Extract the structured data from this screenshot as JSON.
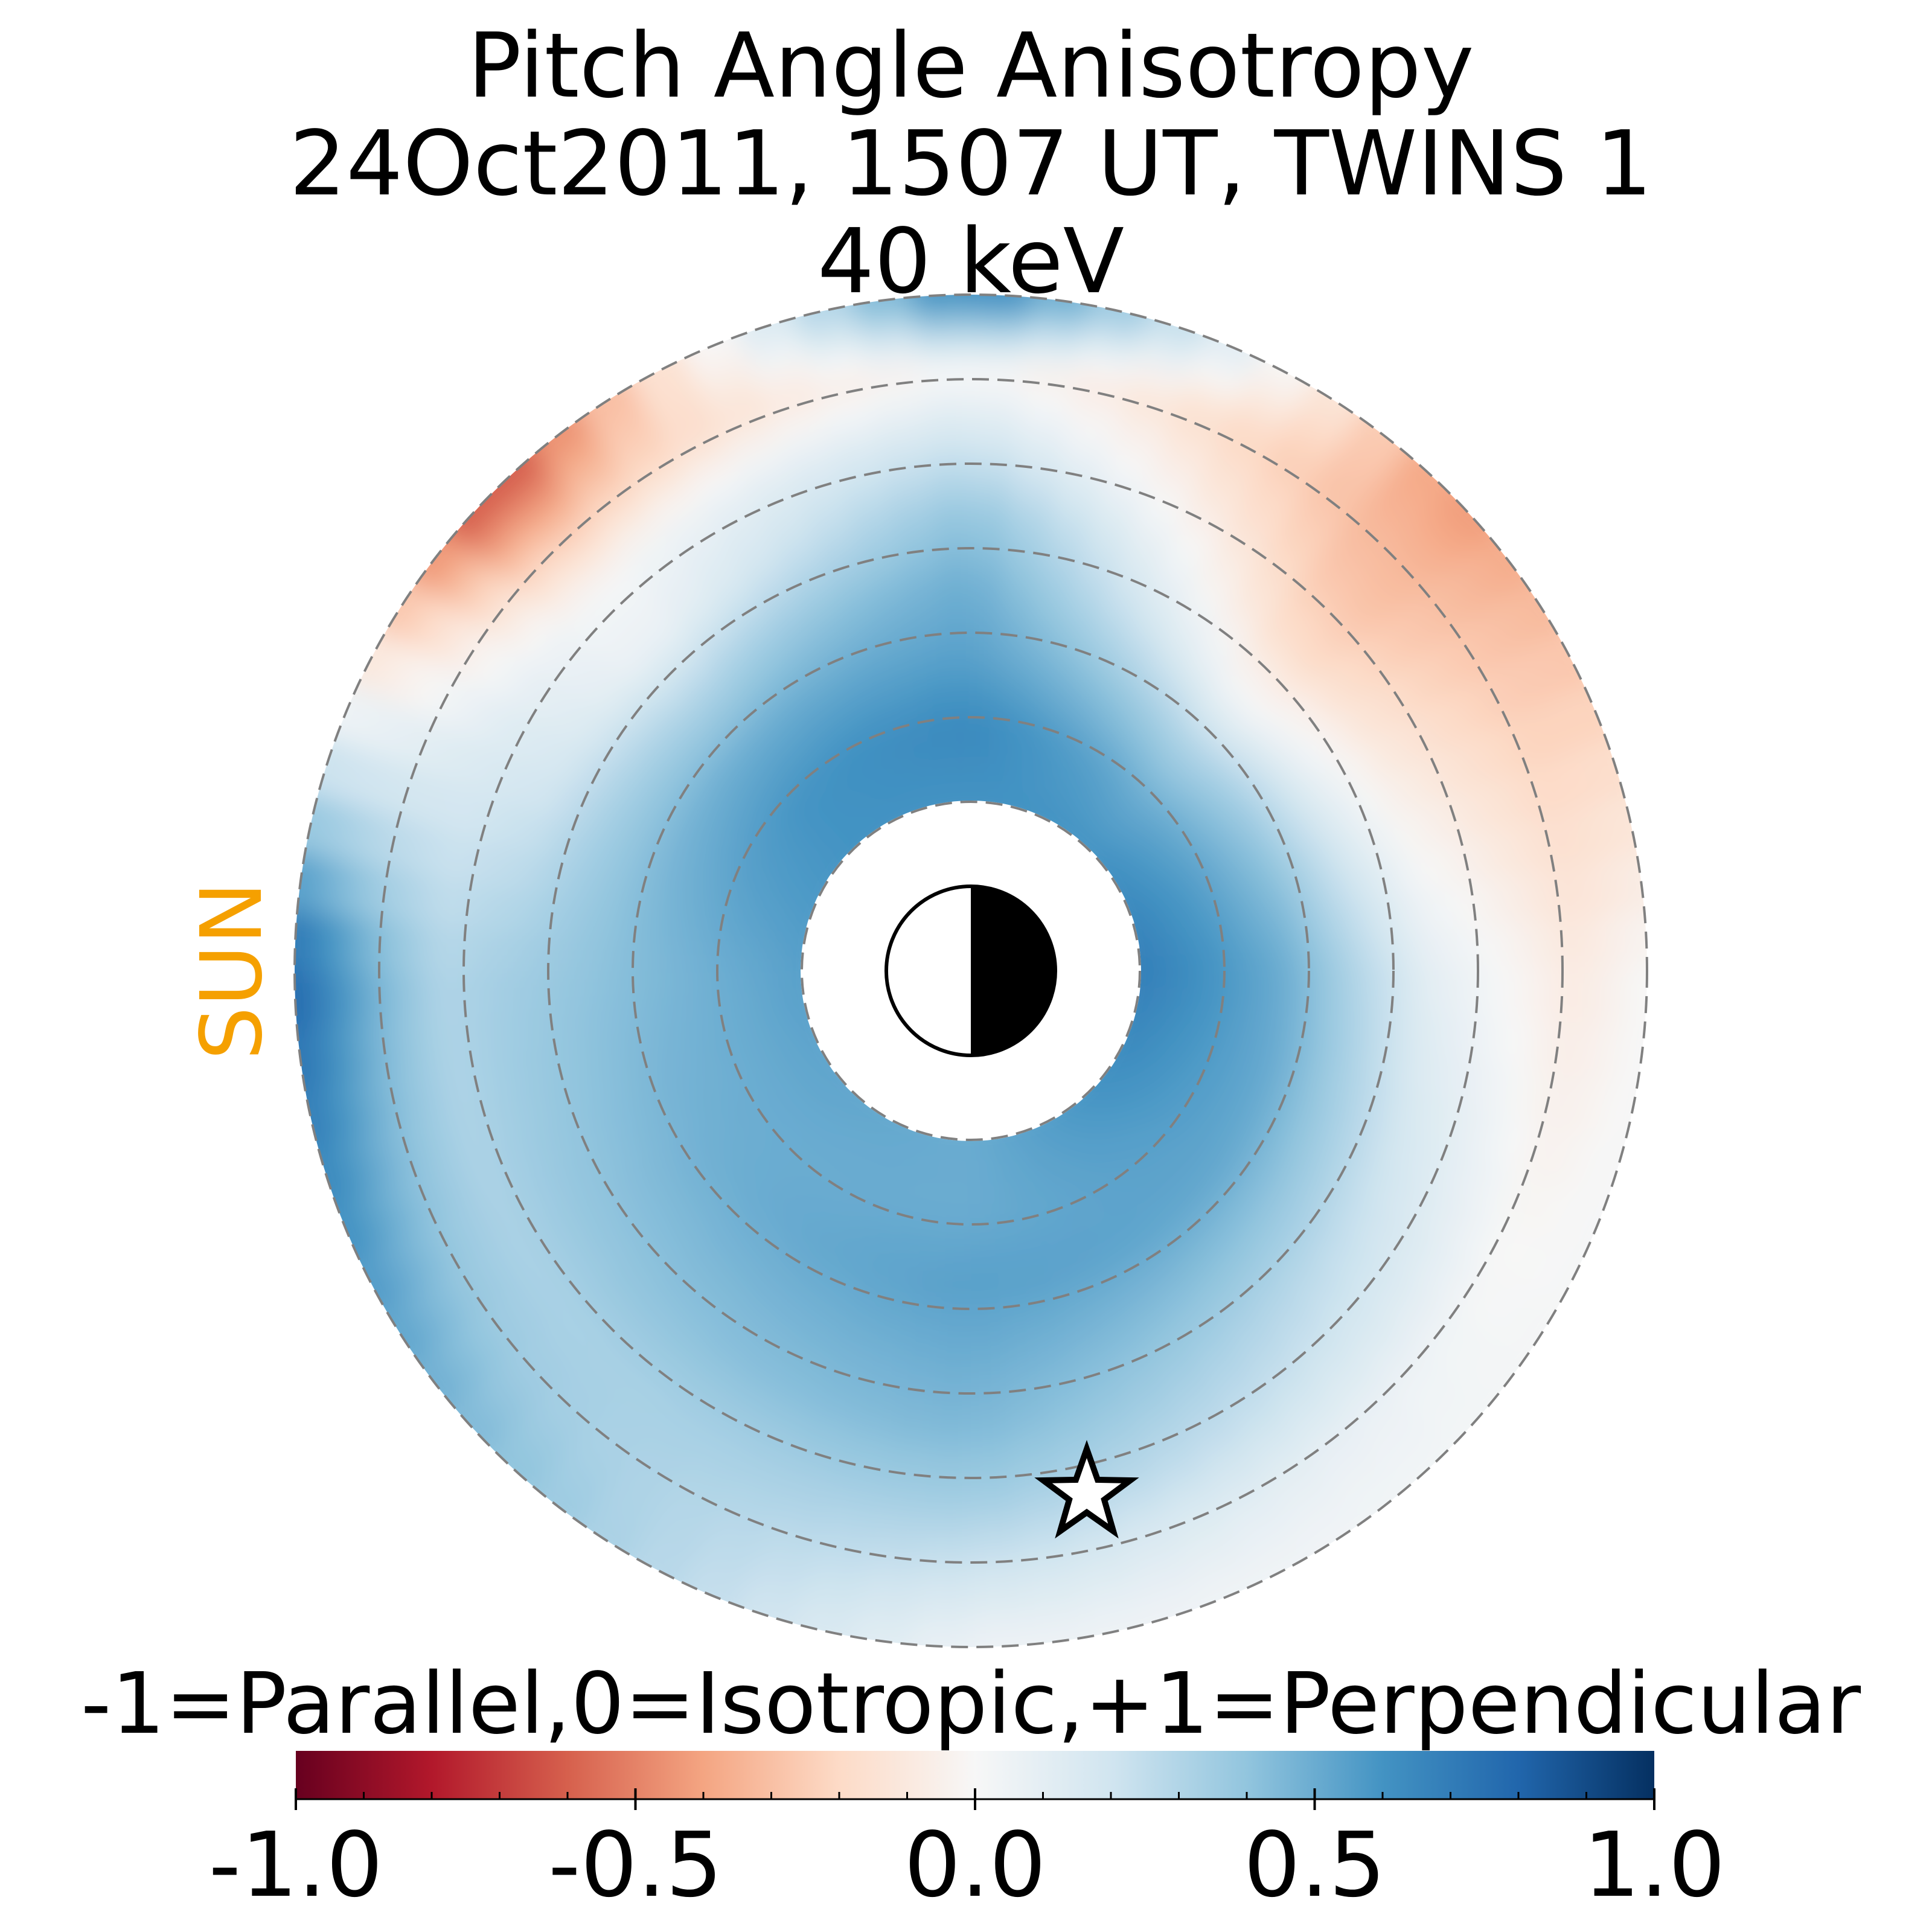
{
  "chart_data": {
    "type": "heatmap",
    "projection": "polar",
    "title_lines": [
      "Pitch Angle Anisotropy",
      "24Oct2011, 1507 UT,  TWINS 1",
      "40 keV"
    ],
    "direction_label": "SUN",
    "colorbar": {
      "label": "-1=Parallel,0=Isotropic,+1=Perpendicular",
      "range": [
        -1.0,
        1.0
      ],
      "ticks": [
        -1.0,
        -0.5,
        0.0,
        0.5,
        1.0
      ],
      "tick_labels": [
        "-1.0",
        "-0.5",
        "0.0",
        "0.5",
        "1.0"
      ],
      "colormap": "RdBu"
    },
    "radial_rings": [
      2,
      3,
      4,
      5,
      6,
      7,
      8
    ],
    "outer_radius": 8,
    "inner_gap_radius": 2,
    "anisotropy_samples": [
      {
        "theta_deg": 90,
        "values": [
          0.6,
          0.65,
          0.55,
          0.5,
          0.4,
          0.2,
          0.0,
          0.7
        ]
      },
      {
        "theta_deg": 135,
        "values": [
          0.6,
          0.6,
          0.5,
          0.3,
          0.05,
          0.0,
          -0.3,
          -0.7
        ]
      },
      {
        "theta_deg": 180,
        "values": [
          0.55,
          0.5,
          0.45,
          0.4,
          0.35,
          0.3,
          0.5,
          0.8
        ]
      },
      {
        "theta_deg": 270,
        "values": [
          0.5,
          0.5,
          0.55,
          0.5,
          0.45,
          0.35,
          0.2,
          0.05
        ]
      },
      {
        "theta_deg": 0,
        "values": [
          0.7,
          0.6,
          0.5,
          0.3,
          0.1,
          0.0,
          -0.1,
          0.0
        ]
      },
      {
        "theta_deg": 45,
        "values": [
          0.6,
          0.5,
          0.3,
          0.0,
          -0.2,
          -0.3,
          -0.35,
          -0.45
        ]
      }
    ],
    "marker": {
      "type": "star",
      "theta_deg": 280,
      "r": 6.2
    },
    "earth_symbol": {
      "dayside": "left",
      "nightside": "right"
    },
    "colors": {
      "sun_label": "#f5a000",
      "ring_stroke": "#808080"
    }
  }
}
